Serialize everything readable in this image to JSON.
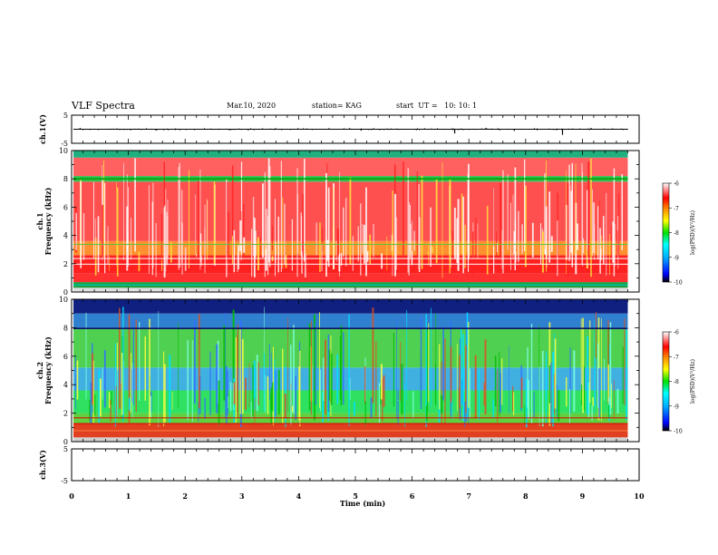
{
  "header": {
    "title": "VLF Spectra",
    "date": "Mar.10, 2020",
    "station": "station= KAG",
    "start": "start  UT =   10: 10: 1"
  },
  "chart_data": [
    {
      "type": "line",
      "panel": "ch1-waveform",
      "ylabel": "ch.1(V)",
      "ylim": [
        -5,
        5
      ],
      "yticks": [
        5,
        -5
      ],
      "series": [
        {
          "x": [
            0,
            0.8,
            1.5,
            2.6,
            3.7,
            4.9,
            5.1,
            6.75,
            7.3,
            7.8,
            8.65,
            9.8
          ],
          "y": [
            -0.2,
            0.3,
            -0.4,
            0.2,
            -0.3,
            0.4,
            -0.5,
            -1.5,
            0.5,
            -0.6,
            -2.0,
            -0.2
          ]
        }
      ]
    },
    {
      "type": "heatmap",
      "panel": "ch1-spectrogram",
      "ylabel": "ch.1\nFrequency (kHz)",
      "ylim": [
        0,
        10
      ],
      "yticks": [
        0,
        2,
        4,
        6,
        8,
        10
      ],
      "colorbar": {
        "label": "log(PSD)(V²/Hz)",
        "range": [
          -10,
          -6
        ],
        "ticks": [
          -6,
          -7,
          -8,
          -9,
          -10
        ]
      }
    },
    {
      "type": "heatmap",
      "panel": "ch2-spectrogram",
      "ylabel": "ch.2\nFrequency (kHz)",
      "ylim": [
        0,
        10
      ],
      "yticks": [
        0,
        2,
        4,
        6,
        8,
        10
      ],
      "colorbar": {
        "label": "log(PSD)(V²/Hz)",
        "range": [
          -10,
          -6
        ],
        "ticks": [
          -6,
          -7,
          -8,
          -9,
          -10
        ]
      }
    },
    {
      "type": "line",
      "panel": "ch3-waveform",
      "ylabel": "ch.3(V)",
      "ylim": [
        -5,
        5
      ],
      "yticks": [
        5,
        -5
      ],
      "series": []
    }
  ],
  "xaxis": {
    "label": "Time (min)",
    "xlim": [
      0,
      10
    ],
    "ticks": [
      "0",
      "1",
      "2",
      "3",
      "4",
      "5",
      "6",
      "7",
      "8",
      "9",
      "10"
    ],
    "data_end": 9.8
  },
  "colors": {
    "scale": [
      "#000000",
      "#0000ff",
      "#00a0ff",
      "#00ffff",
      "#00e000",
      "#ffff00",
      "#ff8000",
      "#ff0000",
      "#ffffff"
    ]
  }
}
